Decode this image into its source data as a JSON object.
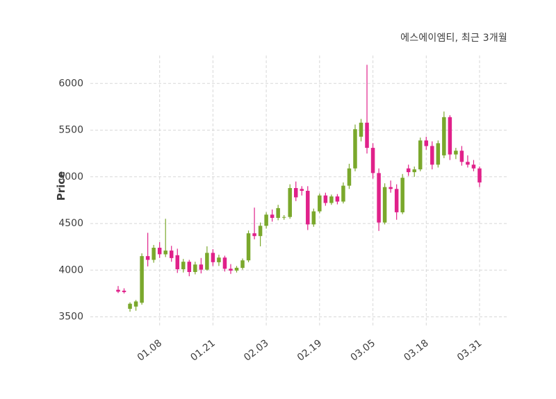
{
  "title": "에스에이엠티, 최근 3개월",
  "chart_data": {
    "type": "candlestick",
    "title": "에스에이엠티, 최근 3개월",
    "xlabel": "",
    "ylabel": "Price",
    "ylim": [
      3400,
      6300
    ],
    "y_ticks": [
      3500,
      4000,
      4500,
      5000,
      5500,
      6000
    ],
    "x_tick_labels": [
      "01.08",
      "01.21",
      "02.03",
      "02.19",
      "03.05",
      "03.18",
      "03.31"
    ],
    "x_tick_indices": [
      7,
      16,
      25,
      34,
      43,
      52,
      61
    ],
    "grid": true,
    "legend": "none",
    "colors": {
      "up": "#7aa82c",
      "down": "#e0218a",
      "grid": "#d7d7d7",
      "text": "#3d3d3d",
      "plot_bg": "#ffffff"
    },
    "candles_format": [
      "open",
      "high",
      "low",
      "close"
    ],
    "candles": [
      [
        3790,
        3830,
        3755,
        3770
      ],
      [
        3780,
        3805,
        3750,
        3765
      ],
      [
        3585,
        3655,
        3555,
        3640
      ],
      [
        3610,
        3680,
        3565,
        3665
      ],
      [
        3650,
        4180,
        3630,
        4150
      ],
      [
        4150,
        4400,
        4040,
        4110
      ],
      [
        4110,
        4270,
        4080,
        4240
      ],
      [
        4240,
        4300,
        4130,
        4170
      ],
      [
        4170,
        4550,
        4140,
        4210
      ],
      [
        4210,
        4260,
        4090,
        4130
      ],
      [
        4160,
        4230,
        3970,
        4010
      ],
      [
        4010,
        4120,
        3975,
        4090
      ],
      [
        4090,
        4110,
        3935,
        3980
      ],
      [
        3980,
        4090,
        3955,
        4060
      ],
      [
        4060,
        4130,
        3965,
        4005
      ],
      [
        4005,
        4255,
        3995,
        4185
      ],
      [
        4185,
        4225,
        4045,
        4085
      ],
      [
        4085,
        4165,
        4045,
        4135
      ],
      [
        4135,
        4155,
        3985,
        4015
      ],
      [
        4015,
        4065,
        3960,
        3995
      ],
      [
        3995,
        4045,
        3975,
        4025
      ],
      [
        4025,
        4125,
        4005,
        4105
      ],
      [
        4105,
        4425,
        4085,
        4395
      ],
      [
        4395,
        4670,
        4330,
        4365
      ],
      [
        4365,
        4510,
        4255,
        4475
      ],
      [
        4475,
        4620,
        4445,
        4595
      ],
      [
        4595,
        4650,
        4520,
        4560
      ],
      [
        4560,
        4700,
        4535,
        4665
      ],
      [
        4565,
        4590,
        4540,
        4570
      ],
      [
        4570,
        4920,
        4550,
        4880
      ],
      [
        4880,
        4950,
        4740,
        4780
      ],
      [
        4870,
        4900,
        4800,
        4850
      ],
      [
        4850,
        4900,
        4430,
        4490
      ],
      [
        4490,
        4660,
        4465,
        4630
      ],
      [
        4630,
        4820,
        4610,
        4800
      ],
      [
        4800,
        4830,
        4690,
        4720
      ],
      [
        4720,
        4810,
        4700,
        4790
      ],
      [
        4790,
        4815,
        4705,
        4735
      ],
      [
        4735,
        4940,
        4715,
        4905
      ],
      [
        4905,
        5140,
        4870,
        5090
      ],
      [
        5090,
        5560,
        5060,
        5510
      ],
      [
        5430,
        5620,
        5380,
        5580
      ],
      [
        5580,
        6200,
        5250,
        5310
      ],
      [
        5310,
        5360,
        4980,
        5040
      ],
      [
        5040,
        5090,
        4420,
        4510
      ],
      [
        4510,
        4930,
        4490,
        4890
      ],
      [
        4890,
        4960,
        4830,
        4870
      ],
      [
        4870,
        4920,
        4540,
        4620
      ],
      [
        4620,
        5030,
        4600,
        4990
      ],
      [
        5090,
        5130,
        5010,
        5050
      ],
      [
        5050,
        5110,
        5000,
        5080
      ],
      [
        5080,
        5420,
        5060,
        5390
      ],
      [
        5390,
        5430,
        5290,
        5330
      ],
      [
        5330,
        5380,
        5080,
        5130
      ],
      [
        5130,
        5390,
        5100,
        5360
      ],
      [
        5230,
        5700,
        5200,
        5640
      ],
      [
        5640,
        5660,
        5180,
        5240
      ],
      [
        5240,
        5310,
        5190,
        5280
      ],
      [
        5280,
        5330,
        5120,
        5160
      ],
      [
        5160,
        5230,
        5100,
        5130
      ],
      [
        5130,
        5180,
        5060,
        5090
      ],
      [
        5090,
        5110,
        4890,
        4940
      ]
    ]
  }
}
